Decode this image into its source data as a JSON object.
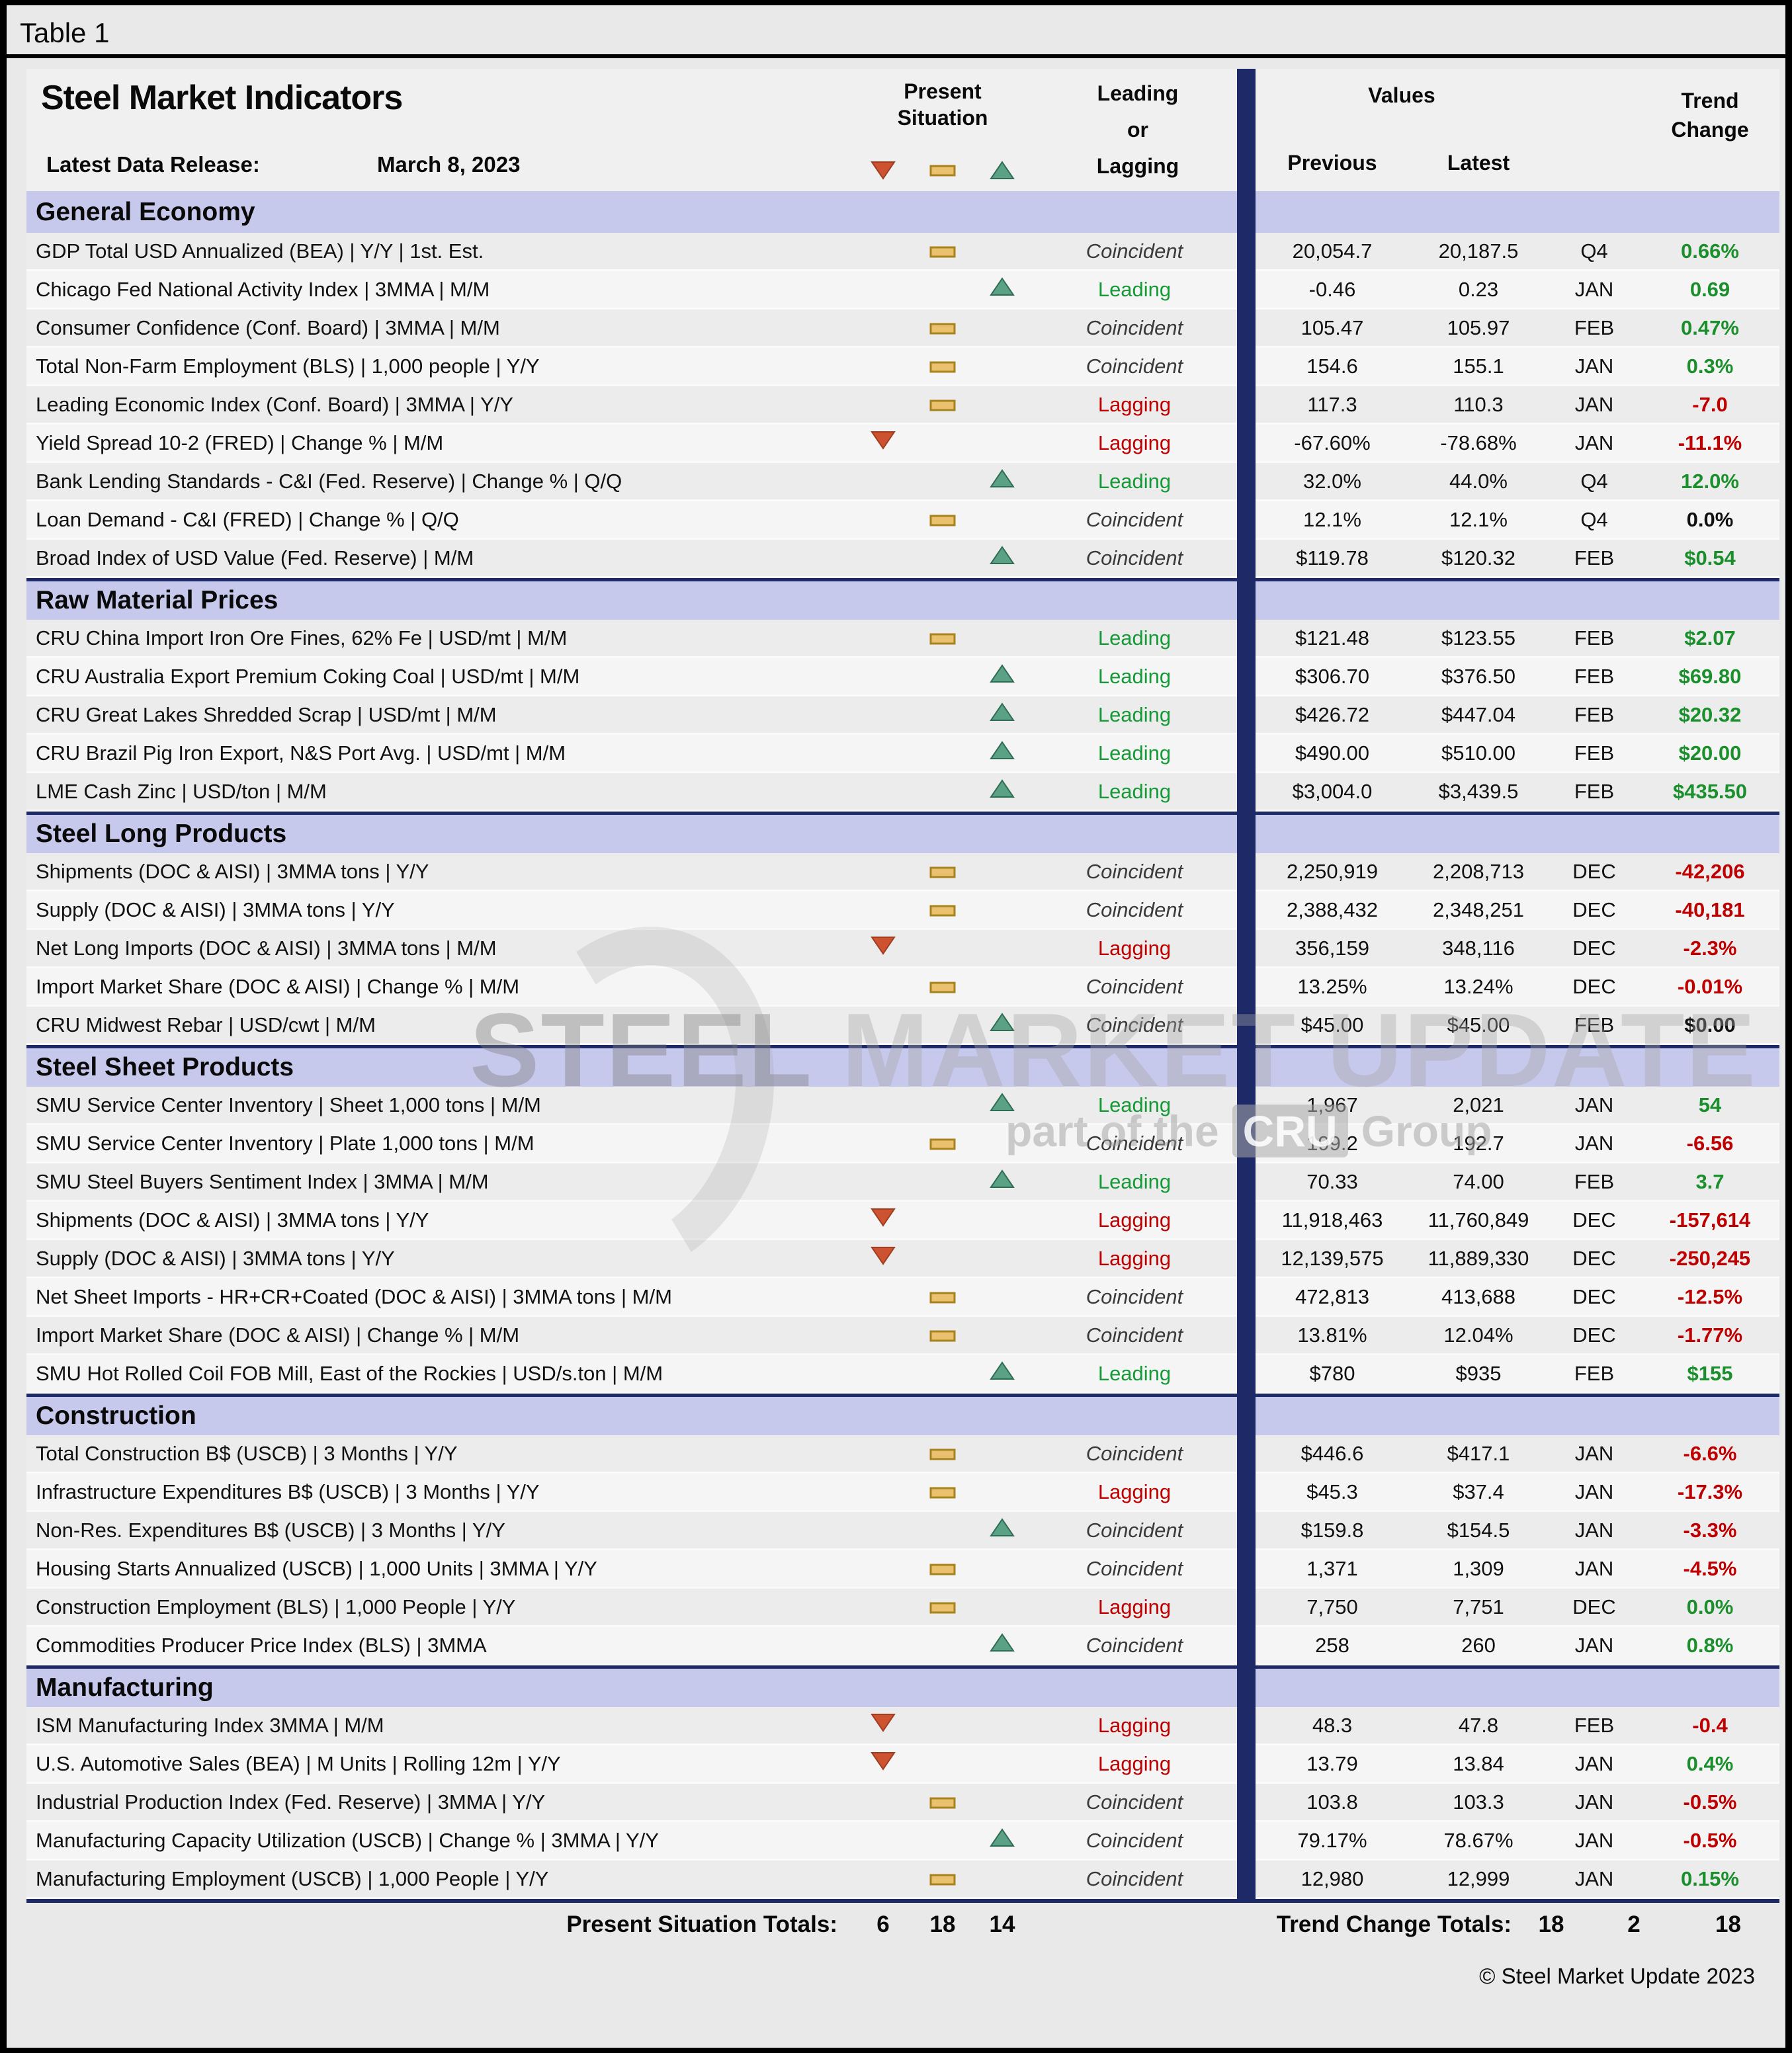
{
  "window": {
    "table_label": "Table 1",
    "copyright": "© Steel Market Update 2023"
  },
  "header": {
    "title": "Steel Market Indicators",
    "release_label": "Latest Data Release:",
    "release_date": "March 8, 2023",
    "present_situation": [
      "Present",
      "Situation"
    ],
    "leading_or_lagging": [
      "Leading",
      "or",
      "Lagging"
    ],
    "values_label": "Values",
    "previous_label": "Previous",
    "latest_label": "Latest",
    "trend_change": [
      "Trend",
      "Change"
    ]
  },
  "legend_icons": [
    "down-triangle",
    "dash",
    "up-triangle"
  ],
  "colors": {
    "navy_divider": "#1e2a68",
    "section_band": "#c7c9ec",
    "leading_green": "#169a37",
    "lagging_red": "#bf0000",
    "trend_green": "#1a8f2c",
    "trend_red": "#bf0000",
    "icon_gold": "#eac16e",
    "icon_red": "#cd5230",
    "icon_green": "#5ba185"
  },
  "watermark": {
    "word1": "STEEL",
    "word2": " MARKET UPDATE",
    "sub1": "part of the",
    "cru": "CRU",
    "sub2": "Group"
  },
  "totals": {
    "present_label": "Present Situation Totals:",
    "present": [
      "6",
      "18",
      "14"
    ],
    "trend_label": "Trend Change Totals:",
    "trend": [
      "18",
      "2",
      "18"
    ]
  },
  "sections": [
    {
      "name": "General Economy",
      "rows": [
        {
          "indicator": "GDP Total USD Annualized (BEA) | Y/Y | 1st. Est.",
          "situation": "dash",
          "type": "Coincident",
          "previous": "20,054.7",
          "latest": "20,187.5",
          "period": "Q4",
          "trend": "0.66%",
          "trend_color": "green"
        },
        {
          "indicator": "Chicago Fed National Activity Index | 3MMA | M/M",
          "situation": "up",
          "type": "Leading",
          "previous": "-0.46",
          "latest": "0.23",
          "period": "JAN",
          "trend": "0.69",
          "trend_color": "green"
        },
        {
          "indicator": "Consumer Confidence (Conf. Board) | 3MMA | M/M",
          "situation": "dash",
          "type": "Coincident",
          "previous": "105.47",
          "latest": "105.97",
          "period": "FEB",
          "trend": "0.47%",
          "trend_color": "green"
        },
        {
          "indicator": "Total Non-Farm Employment (BLS) | 1,000 people | Y/Y",
          "situation": "dash",
          "type": "Coincident",
          "previous": "154.6",
          "latest": "155.1",
          "period": "JAN",
          "trend": "0.3%",
          "trend_color": "green"
        },
        {
          "indicator": "Leading Economic Index (Conf. Board) | 3MMA | Y/Y",
          "situation": "dash",
          "type": "Lagging",
          "previous": "117.3",
          "latest": "110.3",
          "period": "JAN",
          "trend": "-7.0",
          "trend_color": "red"
        },
        {
          "indicator": "Yield Spread 10-2 (FRED) | Change % | M/M",
          "situation": "down",
          "type": "Lagging",
          "previous": "-67.60%",
          "latest": "-78.68%",
          "period": "JAN",
          "trend": "-11.1%",
          "trend_color": "red"
        },
        {
          "indicator": "Bank Lending Standards - C&I (Fed. Reserve) | Change % | Q/Q",
          "situation": "up",
          "type": "Leading",
          "previous": "32.0%",
          "latest": "44.0%",
          "period": "Q4",
          "trend": "12.0%",
          "trend_color": "green"
        },
        {
          "indicator": "Loan Demand - C&I (FRED) | Change % | Q/Q",
          "situation": "dash",
          "type": "Coincident",
          "previous": "12.1%",
          "latest": "12.1%",
          "period": "Q4",
          "trend": "0.0%",
          "trend_color": "black"
        },
        {
          "indicator": "Broad Index of USD Value (Fed. Reserve) | M/M",
          "situation": "up",
          "type": "Coincident",
          "previous": "$119.78",
          "latest": "$120.32",
          "period": "FEB",
          "trend": "$0.54",
          "trend_color": "green"
        }
      ]
    },
    {
      "name": "Raw Material Prices",
      "rows": [
        {
          "indicator": "CRU China Import Iron Ore Fines, 62% Fe | USD/mt | M/M",
          "situation": "dash",
          "type": "Leading",
          "previous": "$121.48",
          "latest": "$123.55",
          "period": "FEB",
          "trend": "$2.07",
          "trend_color": "green"
        },
        {
          "indicator": "CRU Australia Export Premium Coking Coal | USD/mt | M/M",
          "situation": "up",
          "type": "Leading",
          "previous": "$306.70",
          "latest": "$376.50",
          "period": "FEB",
          "trend": "$69.80",
          "trend_color": "green"
        },
        {
          "indicator": "CRU Great Lakes Shredded Scrap | USD/mt | M/M",
          "situation": "up",
          "type": "Leading",
          "previous": "$426.72",
          "latest": "$447.04",
          "period": "FEB",
          "trend": "$20.32",
          "trend_color": "green"
        },
        {
          "indicator": "CRU Brazil Pig Iron Export, N&S Port Avg. | USD/mt | M/M",
          "situation": "up",
          "type": "Leading",
          "previous": "$490.00",
          "latest": "$510.00",
          "period": "FEB",
          "trend": "$20.00",
          "trend_color": "green"
        },
        {
          "indicator": "LME Cash Zinc | USD/ton | M/M",
          "situation": "up",
          "type": "Leading",
          "previous": "$3,004.0",
          "latest": "$3,439.5",
          "period": "FEB",
          "trend": "$435.50",
          "trend_color": "green"
        }
      ]
    },
    {
      "name": "Steel Long Products",
      "rows": [
        {
          "indicator": "Shipments (DOC & AISI) | 3MMA tons | Y/Y",
          "situation": "dash",
          "type": "Coincident",
          "previous": "2,250,919",
          "latest": "2,208,713",
          "period": "DEC",
          "trend": "-42,206",
          "trend_color": "red"
        },
        {
          "indicator": "Supply (DOC & AISI) | 3MMA tons | Y/Y",
          "situation": "dash",
          "type": "Coincident",
          "previous": "2,388,432",
          "latest": "2,348,251",
          "period": "DEC",
          "trend": "-40,181",
          "trend_color": "red"
        },
        {
          "indicator": "Net Long Imports (DOC & AISI) | 3MMA tons | M/M",
          "situation": "down",
          "type": "Lagging",
          "previous": "356,159",
          "latest": "348,116",
          "period": "DEC",
          "trend": "-2.3%",
          "trend_color": "red"
        },
        {
          "indicator": "Import Market Share (DOC & AISI) | Change % | M/M",
          "situation": "dash",
          "type": "Coincident",
          "previous": "13.25%",
          "latest": "13.24%",
          "period": "DEC",
          "trend": "-0.01%",
          "trend_color": "red"
        },
        {
          "indicator": "CRU Midwest Rebar | USD/cwt | M/M",
          "situation": "up",
          "type": "Coincident",
          "previous": "$45.00",
          "latest": "$45.00",
          "period": "FEB",
          "trend": "$0.00",
          "trend_color": "black"
        }
      ]
    },
    {
      "name": "Steel Sheet Products",
      "rows": [
        {
          "indicator": "SMU Service Center Inventory | Sheet 1,000 tons | M/M",
          "situation": "up",
          "type": "Leading",
          "previous": "1,967",
          "latest": "2,021",
          "period": "JAN",
          "trend": "54",
          "trend_color": "green"
        },
        {
          "indicator": "SMU Service Center Inventory | Plate 1,000 tons | M/M",
          "situation": "dash",
          "type": "Coincident",
          "previous": "199.2",
          "latest": "192.7",
          "period": "JAN",
          "trend": "-6.56",
          "trend_color": "red"
        },
        {
          "indicator": "SMU Steel Buyers Sentiment Index | 3MMA | M/M",
          "situation": "up",
          "type": "Leading",
          "previous": "70.33",
          "latest": "74.00",
          "period": "FEB",
          "trend": "3.7",
          "trend_color": "green"
        },
        {
          "indicator": "Shipments (DOC & AISI) | 3MMA tons | Y/Y",
          "situation": "down",
          "type": "Lagging",
          "previous": "11,918,463",
          "latest": "11,760,849",
          "period": "DEC",
          "trend": "-157,614",
          "trend_color": "red"
        },
        {
          "indicator": "Supply (DOC & AISI) | 3MMA tons | Y/Y",
          "situation": "down",
          "type": "Lagging",
          "previous": "12,139,575",
          "latest": "11,889,330",
          "period": "DEC",
          "trend": "-250,245",
          "trend_color": "red"
        },
        {
          "indicator": "Net Sheet Imports - HR+CR+Coated (DOC & AISI) | 3MMA tons | M/M",
          "situation": "dash",
          "type": "Coincident",
          "previous": "472,813",
          "latest": "413,688",
          "period": "DEC",
          "trend": "-12.5%",
          "trend_color": "red"
        },
        {
          "indicator": "Import Market Share (DOC & AISI) | Change % | M/M",
          "situation": "dash",
          "type": "Coincident",
          "previous": "13.81%",
          "latest": "12.04%",
          "period": "DEC",
          "trend": "-1.77%",
          "trend_color": "red"
        },
        {
          "indicator": "SMU Hot Rolled Coil FOB Mill, East of the Rockies | USD/s.ton | M/M",
          "situation": "up",
          "type": "Leading",
          "previous": "$780",
          "latest": "$935",
          "period": "FEB",
          "trend": "$155",
          "trend_color": "green"
        }
      ]
    },
    {
      "name": "Construction",
      "rows": [
        {
          "indicator": "Total Construction B$ (USCB) | 3 Months | Y/Y",
          "situation": "dash",
          "type": "Coincident",
          "previous": "$446.6",
          "latest": "$417.1",
          "period": "JAN",
          "trend": "-6.6%",
          "trend_color": "red"
        },
        {
          "indicator": "Infrastructure Expenditures B$ (USCB) | 3 Months | Y/Y",
          "situation": "dash",
          "type": "Lagging",
          "previous": "$45.3",
          "latest": "$37.4",
          "period": "JAN",
          "trend": "-17.3%",
          "trend_color": "red"
        },
        {
          "indicator": "Non-Res. Expenditures B$ (USCB) | 3 Months | Y/Y",
          "situation": "up",
          "type": "Coincident",
          "previous": "$159.8",
          "latest": "$154.5",
          "period": "JAN",
          "trend": "-3.3%",
          "trend_color": "red"
        },
        {
          "indicator": "Housing Starts Annualized (USCB) | 1,000 Units | 3MMA | Y/Y",
          "situation": "dash",
          "type": "Coincident",
          "previous": "1,371",
          "latest": "1,309",
          "period": "JAN",
          "trend": "-4.5%",
          "trend_color": "red"
        },
        {
          "indicator": "Construction Employment (BLS) | 1,000 People | Y/Y",
          "situation": "dash",
          "type": "Lagging",
          "previous": "7,750",
          "latest": "7,751",
          "period": "DEC",
          "trend": "0.0%",
          "trend_color": "green"
        },
        {
          "indicator": "Commodities Producer Price Index (BLS) | 3MMA",
          "situation": "up",
          "type": "Coincident",
          "previous": "258",
          "latest": "260",
          "period": "JAN",
          "trend": "0.8%",
          "trend_color": "green"
        }
      ]
    },
    {
      "name": "Manufacturing",
      "rows": [
        {
          "indicator": "ISM Manufacturing Index 3MMA | M/M",
          "situation": "down",
          "type": "Lagging",
          "previous": "48.3",
          "latest": "47.8",
          "period": "FEB",
          "trend": "-0.4",
          "trend_color": "red"
        },
        {
          "indicator": "U.S. Automotive Sales (BEA) | M Units | Rolling 12m | Y/Y",
          "situation": "down",
          "type": "Lagging",
          "previous": "13.79",
          "latest": "13.84",
          "period": "JAN",
          "trend": "0.4%",
          "trend_color": "green"
        },
        {
          "indicator": "Industrial Production Index (Fed. Reserve) | 3MMA | Y/Y",
          "situation": "dash",
          "type": "Coincident",
          "previous": "103.8",
          "latest": "103.3",
          "period": "JAN",
          "trend": "-0.5%",
          "trend_color": "red"
        },
        {
          "indicator": "Manufacturing Capacity Utilization (USCB) | Change % | 3MMA | Y/Y",
          "situation": "up",
          "type": "Coincident",
          "previous": "79.17%",
          "latest": "78.67%",
          "period": "JAN",
          "trend": "-0.5%",
          "trend_color": "red"
        },
        {
          "indicator": "Manufacturing Employment (USCB) | 1,000 People | Y/Y",
          "situation": "dash",
          "type": "Coincident",
          "previous": "12,980",
          "latest": "12,999",
          "period": "JAN",
          "trend": "0.15%",
          "trend_color": "green"
        }
      ]
    }
  ]
}
